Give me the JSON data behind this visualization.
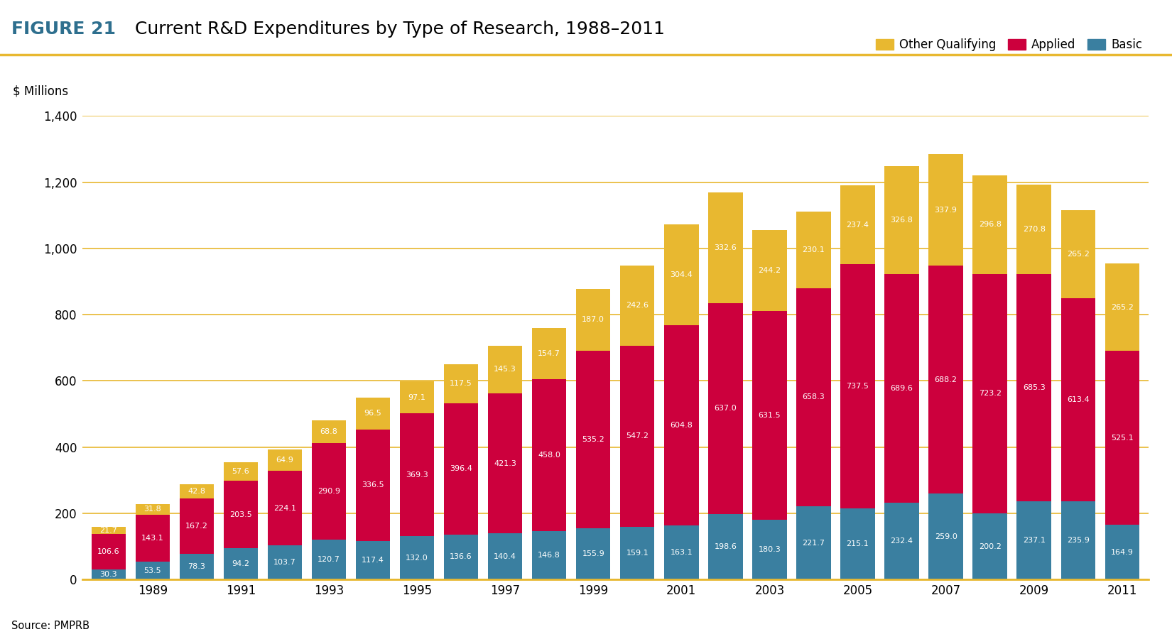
{
  "title_figure": "FIGURE 21",
  "title_text": "Current R&D Expenditures by Type of Research, 1988–2011",
  "ylabel": "$ Millions",
  "source": "Source: PMPRB",
  "years": [
    1988,
    1989,
    1990,
    1991,
    1992,
    1993,
    1994,
    1995,
    1996,
    1997,
    1998,
    1999,
    2000,
    2001,
    2002,
    2003,
    2004,
    2005,
    2006,
    2007,
    2008,
    2009,
    2010,
    2011
  ],
  "basic": [
    30.3,
    53.5,
    78.3,
    94.2,
    103.7,
    120.7,
    117.4,
    132.0,
    136.6,
    140.4,
    146.8,
    155.9,
    159.1,
    163.1,
    198.6,
    180.3,
    221.7,
    215.1,
    232.4,
    259.0,
    200.2,
    237.1,
    235.9,
    164.9
  ],
  "applied": [
    106.6,
    143.1,
    167.2,
    203.5,
    224.1,
    290.9,
    336.5,
    369.3,
    396.4,
    421.3,
    458.0,
    535.2,
    547.2,
    604.8,
    637.0,
    631.5,
    658.3,
    737.5,
    689.6,
    688.2,
    723.2,
    685.3,
    613.4,
    525.1
  ],
  "other": [
    21.7,
    31.8,
    42.8,
    57.6,
    64.9,
    68.8,
    96.5,
    97.1,
    117.5,
    145.3,
    154.7,
    187.0,
    242.6,
    304.4,
    332.6,
    244.2,
    230.1,
    237.4,
    326.8,
    337.9,
    296.8,
    270.8,
    265.2,
    265.2
  ],
  "color_basic": "#3a7fa0",
  "color_applied": "#cc003d",
  "color_other": "#e8b830",
  "color_grid": "#e8b830",
  "ylim": [
    0,
    1400
  ],
  "yticks": [
    0,
    200,
    400,
    600,
    800,
    1000,
    1200,
    1400
  ],
  "ytick_labels": [
    "0",
    "200",
    "400",
    "600",
    "800",
    "1,000",
    "1,200",
    "1,400"
  ],
  "xtick_years": [
    1989,
    1991,
    1993,
    1995,
    1997,
    1999,
    2001,
    2003,
    2005,
    2007,
    2009,
    2011
  ],
  "background_color": "#ffffff",
  "legend_labels": [
    "Other Qualifying",
    "Applied",
    "Basic"
  ],
  "legend_colors": [
    "#e8b830",
    "#cc003d",
    "#3a7fa0"
  ],
  "title_figure_color": "#2e6f8e",
  "title_figure_fontsize": 18,
  "title_text_fontsize": 18
}
